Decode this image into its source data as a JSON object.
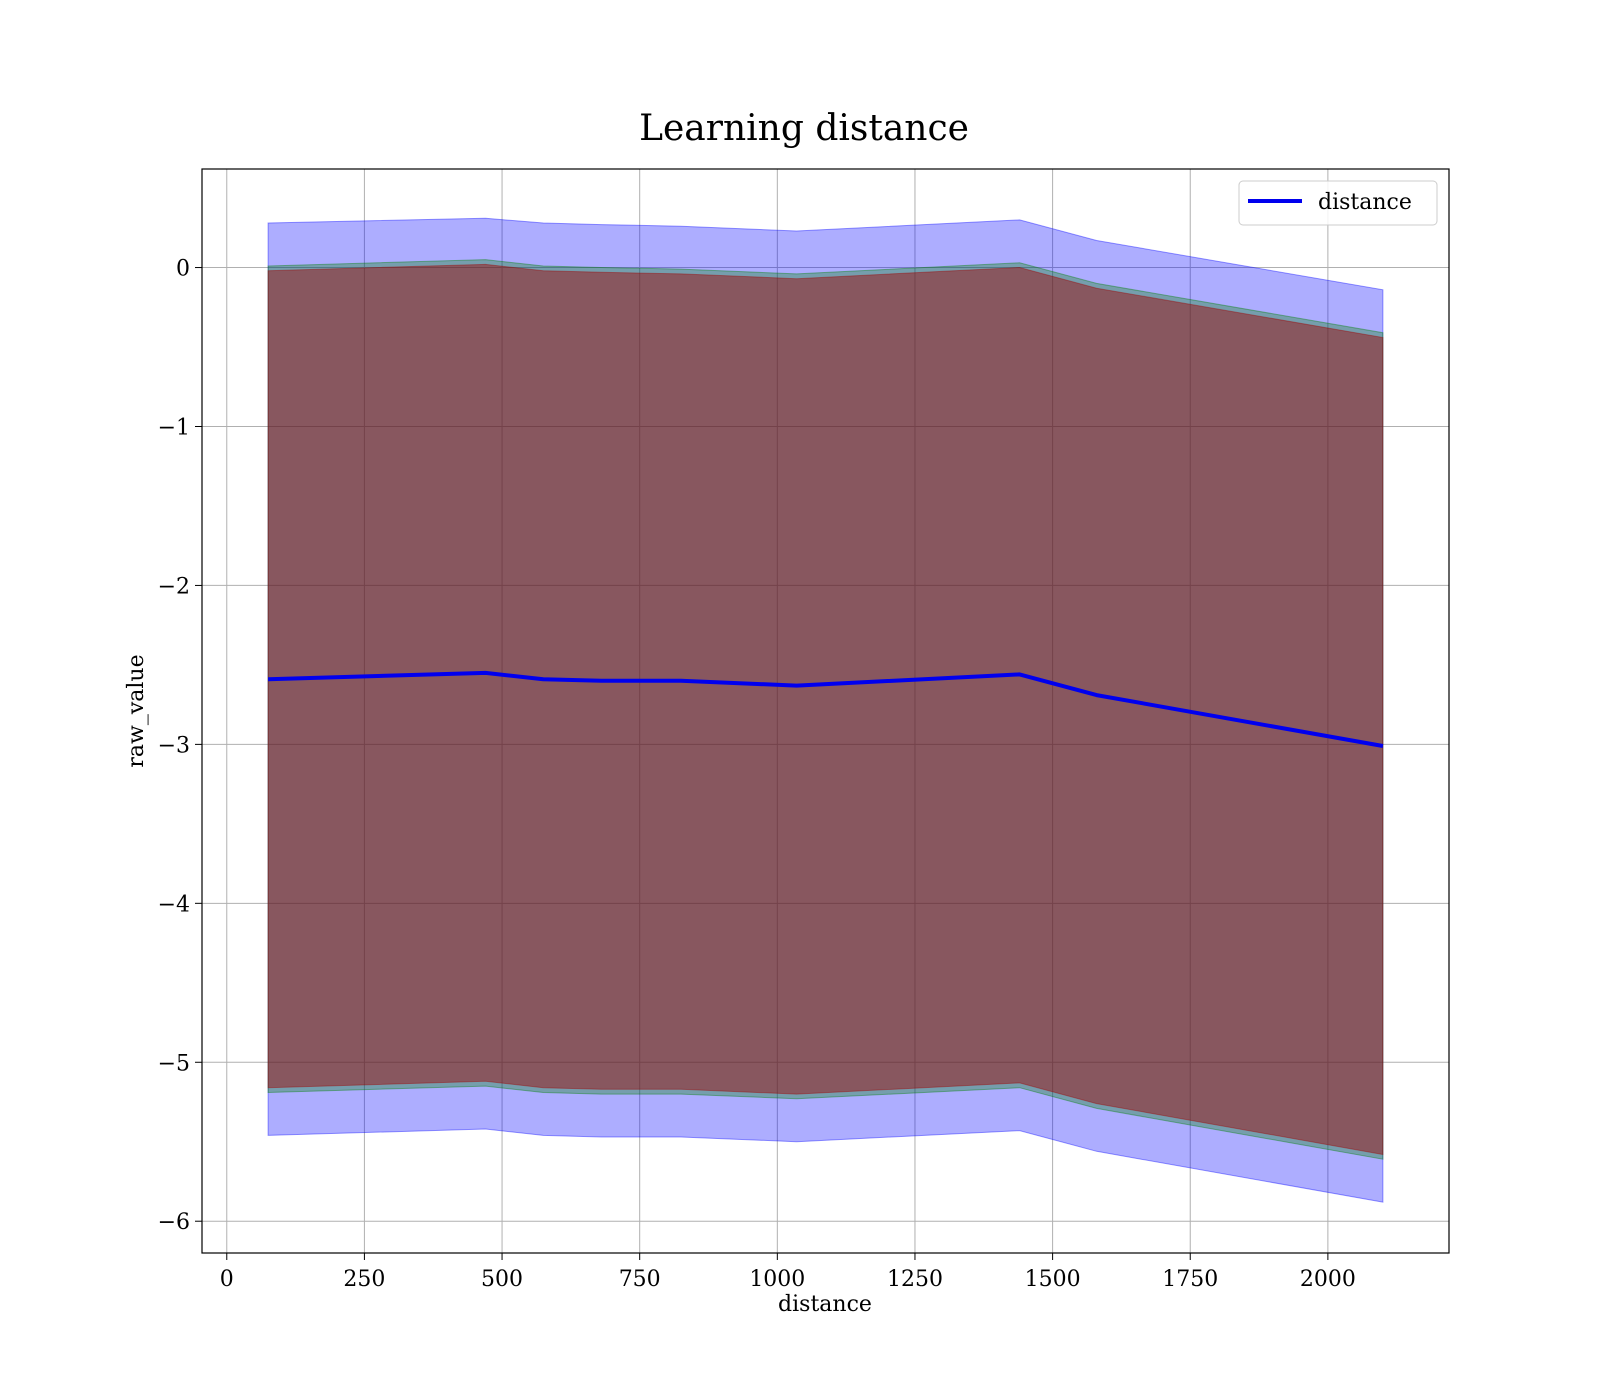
{
  "chart_data": {
    "type": "line",
    "title": "Learning distance",
    "xlabel": "distance",
    "ylabel": "raw_value",
    "xlim": [
      -45,
      2220
    ],
    "ylim": [
      -6.2,
      0.62
    ],
    "x_ticks": [
      0,
      250,
      500,
      750,
      1000,
      1250,
      1500,
      1750,
      2000
    ],
    "y_ticks": [
      0,
      -1,
      -2,
      -3,
      -4,
      -5,
      -6
    ],
    "y_tick_labels": [
      "0",
      "−1",
      "−2",
      "−3",
      "−4",
      "−5",
      "−6"
    ],
    "grid": true,
    "legend_position": "top-right",
    "x": [
      75,
      470,
      575,
      680,
      825,
      1035,
      1440,
      1580,
      2100
    ],
    "series": [
      {
        "name": "distance",
        "color": "#0000ee",
        "values": [
          -2.59,
          -2.55,
          -2.59,
          -2.6,
          -2.6,
          -2.63,
          -2.56,
          -2.69,
          -3.01
        ]
      }
    ],
    "bands": [
      {
        "color": "#0000ff",
        "opacity": 0.32,
        "upper": [
          0.28,
          0.31,
          0.28,
          0.27,
          0.26,
          0.23,
          0.3,
          0.17,
          -0.14
        ],
        "lower": [
          -5.46,
          -5.42,
          -5.46,
          -5.47,
          -5.47,
          -5.5,
          -5.43,
          -5.56,
          -5.88
        ]
      },
      {
        "color": "#008000",
        "opacity": 0.32,
        "upper": [
          0.01,
          0.05,
          0.01,
          0.0,
          -0.01,
          -0.04,
          0.03,
          -0.1,
          -0.41
        ],
        "lower": [
          -5.19,
          -5.15,
          -5.19,
          -5.2,
          -5.2,
          -5.23,
          -5.16,
          -5.29,
          -5.61
        ]
      },
      {
        "color": "#a00000",
        "opacity": 0.45,
        "upper": [
          -0.02,
          0.02,
          -0.02,
          -0.03,
          -0.04,
          -0.07,
          0.0,
          -0.13,
          -0.44
        ],
        "lower": [
          -5.16,
          -5.12,
          -5.16,
          -5.17,
          -5.17,
          -5.2,
          -5.13,
          -5.26,
          -5.58
        ]
      }
    ]
  }
}
